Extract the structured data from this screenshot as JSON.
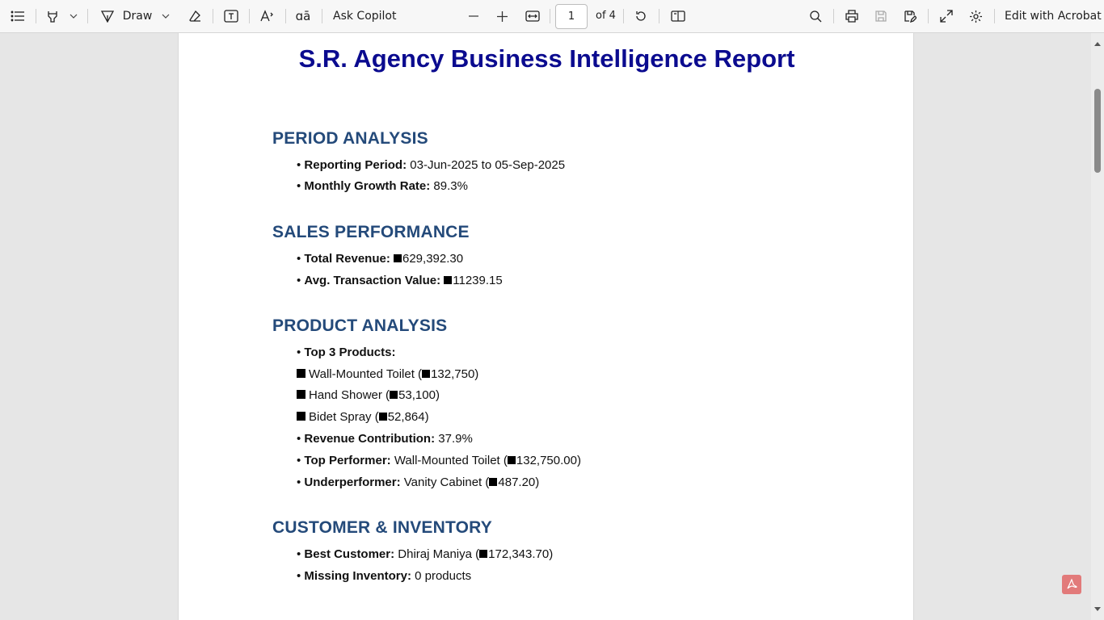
{
  "toolbar": {
    "contents_icon": "list-icon",
    "highlight_icon": "highlighter-icon",
    "draw_label": "Draw",
    "ask_copilot_label": "Ask Copilot",
    "page_number": "1",
    "page_total": "of 4",
    "edit_acrobat_label": "Edit with Acrobat"
  },
  "document": {
    "title": "S.R. Agency Business Intelligence Report",
    "sections": {
      "period": {
        "heading": "PERIOD ANALYSIS",
        "reporting_label": "Reporting Period:",
        "reporting_value": " 03-Jun-2025 to 05-Sep-2025",
        "growth_label": "Monthly Growth Rate:",
        "growth_value": " 89.3%"
      },
      "sales": {
        "heading": "SALES PERFORMANCE",
        "revenue_label": "Total Revenue:",
        "revenue_value": "629,392.30",
        "avg_label": "Avg. Transaction Value:",
        "avg_value": "11239.15"
      },
      "product": {
        "heading": "PRODUCT ANALYSIS",
        "top3_label": "Top 3 Products:",
        "products": [
          {
            "name": "Wall-Mounted Toilet (",
            "value": "132,750)"
          },
          {
            "name": "Hand Shower (",
            "value": "53,100)"
          },
          {
            "name": "Bidet Spray (",
            "value": "52,864)"
          }
        ],
        "contribution_label": "Revenue Contribution:",
        "contribution_value": " 37.9%",
        "top_perf_label": "Top Performer:",
        "top_perf_name": " Wall-Mounted Toilet (",
        "top_perf_value": "132,750.00)",
        "under_label": "Underperformer:",
        "under_name": " Vanity Cabinet (",
        "under_value": "487.20)"
      },
      "customer": {
        "heading": "CUSTOMER & INVENTORY",
        "best_label": "Best Customer:",
        "best_name": " Dhiraj Maniya (",
        "best_value": "172,343.70)",
        "missing_label": "Missing Inventory:",
        "missing_value": " 0 products"
      }
    }
  },
  "colors": {
    "title": "#0b0b8f",
    "section_heading": "#244a7a",
    "toolbar_bg": "#f7f7f7",
    "canvas_bg": "#e6e6e6"
  }
}
